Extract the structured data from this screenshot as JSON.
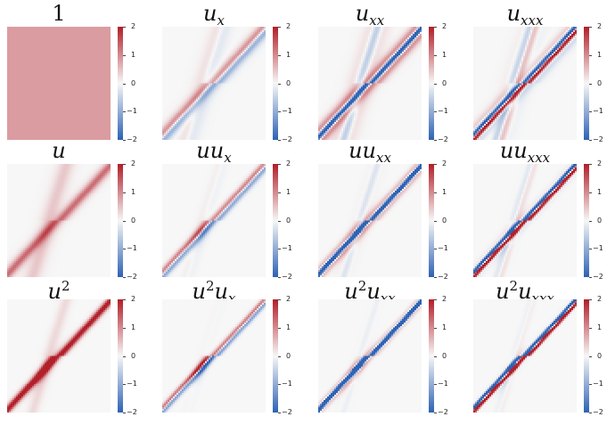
{
  "chart_data": {
    "type": "heatmap",
    "layout": {
      "rows": 3,
      "cols": 4
    },
    "colormap": {
      "name": "vlag",
      "min": -2,
      "max": 2,
      "low_color": "#2f63b4",
      "mid_color": "#f7f7f7",
      "high_color": "#b2202a"
    },
    "colorbar_ticks": [
      "2",
      "1",
      "0",
      "−1",
      "−2"
    ],
    "panels": [
      {
        "id": "p-1",
        "title_base": "1",
        "title_sup": "",
        "title_sub": "",
        "pattern": "constant",
        "value": 0.85
      },
      {
        "id": "p-ux",
        "title_base": "u",
        "title_sup": "",
        "title_sub": "x",
        "pattern": "deriv1"
      },
      {
        "id": "p-uxx",
        "title_base": "u",
        "title_sup": "",
        "title_sub": "xx",
        "pattern": "deriv2"
      },
      {
        "id": "p-uxxx",
        "title_base": "u",
        "title_sup": "",
        "title_sub": "xxx",
        "pattern": "deriv3"
      },
      {
        "id": "p-u",
        "title_base": "u",
        "title_sup": "",
        "title_sub": "",
        "pattern": "soliton"
      },
      {
        "id": "p-uux",
        "title_base": "uu",
        "title_sup": "",
        "title_sub": "x",
        "pattern": "uderiv1"
      },
      {
        "id": "p-uuxx",
        "title_base": "uu",
        "title_sup": "",
        "title_sub": "xx",
        "pattern": "uderiv2"
      },
      {
        "id": "p-uuxxx",
        "title_base": "uu",
        "title_sup": "",
        "title_sub": "xxx",
        "pattern": "uderiv3"
      },
      {
        "id": "p-u2",
        "title_base": "u",
        "title_sup": "2",
        "title_sub": "",
        "pattern": "soliton2"
      },
      {
        "id": "p-u2ux",
        "title_base": "u",
        "title_sup": "2",
        "title_sub": "x",
        "pattern": "u2deriv1",
        "title_tail": "u"
      },
      {
        "id": "p-u2uxx",
        "title_base": "u",
        "title_sup": "2",
        "title_sub": "xx",
        "pattern": "u2deriv2",
        "title_tail": "u"
      },
      {
        "id": "p-u2uxxx",
        "title_base": "u",
        "title_sup": "2",
        "title_sub": "xxx",
        "pattern": "u2deriv3",
        "title_tail": "u"
      }
    ]
  }
}
